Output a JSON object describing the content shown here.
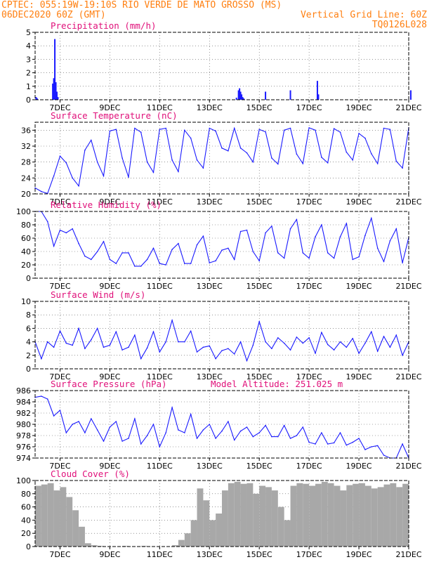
{
  "header": {
    "line1_left": "CPTEC:   055:19W-19:10S  RIO VERDE DE MATO GROSSO (MS)",
    "line2_left": "06DEC2020 60Z (GMT)",
    "line2_right": "Vertical Grid Line: 60Z",
    "line3_right": "TQ0126L028"
  },
  "colors": {
    "header": "#ff7f10",
    "titles": "#e0107a",
    "series": "#1a1aff",
    "cloud": "#a8a8a8"
  },
  "x_axis": {
    "ticks": [
      "7DEC",
      "9DEC",
      "11DEC",
      "13DEC",
      "15DEC",
      "17DEC",
      "19DEC",
      "21DEC"
    ],
    "range_hours": [
      0,
      360
    ],
    "note": "x values are hours from 06DEC2020 00Z"
  },
  "chart_data": [
    {
      "type": "bar",
      "title": "Precipitation (mm/h)",
      "ylim": [
        0,
        5
      ],
      "yticks": [
        "0",
        "1",
        "2",
        "3",
        "4",
        "5"
      ],
      "x": [
        1,
        2,
        17,
        18,
        19,
        20,
        21,
        22,
        194,
        196,
        197,
        198,
        199,
        200,
        201,
        222,
        246,
        272,
        273,
        362
      ],
      "values": [
        0.2,
        0.1,
        1.2,
        1.6,
        4.5,
        1.3,
        0.6,
        0.2,
        0.15,
        0.7,
        0.85,
        0.6,
        0.4,
        0.2,
        0.1,
        0.6,
        0.7,
        1.4,
        0.4,
        0.7
      ]
    },
    {
      "type": "line",
      "title": "Surface Temperature (nC)",
      "ylim": [
        20,
        38
      ],
      "yticks": [
        "20",
        "24",
        "28",
        "32",
        "36"
      ],
      "x": [
        0,
        6,
        12,
        18,
        24,
        30,
        36,
        42,
        48,
        54,
        60,
        66,
        72,
        78,
        84,
        90,
        96,
        102,
        108,
        114,
        120,
        126,
        132,
        138,
        144,
        150,
        156,
        162,
        168,
        174,
        180,
        186,
        192,
        198,
        204,
        210,
        216,
        222,
        228,
        234,
        240,
        246,
        252,
        258,
        264,
        270,
        276,
        282,
        288,
        294,
        300,
        306,
        312,
        318,
        324,
        330,
        336,
        342,
        348,
        354,
        360
      ],
      "values": [
        21.5,
        20.6,
        20.1,
        24.5,
        29.5,
        27.8,
        24,
        22,
        31,
        33.5,
        28,
        24.5,
        35.8,
        36.2,
        29,
        24.2,
        36.5,
        35.5,
        28,
        25.4,
        36.2,
        36.5,
        28.5,
        25.6,
        36,
        34,
        28.5,
        26.5,
        36.5,
        35.8,
        31.5,
        30.8,
        36.5,
        31.5,
        30.3,
        28,
        36.2,
        35.6,
        29,
        27.5,
        36,
        36.5,
        30,
        27.6,
        36.6,
        36,
        29.2,
        27.8,
        36.4,
        35.5,
        30.5,
        28.5,
        35.2,
        34,
        30.1,
        27.6,
        36.5,
        36.2,
        28.2,
        26.5,
        36.6
      ]
    },
    {
      "type": "line",
      "title": "Relative Humidity (%)",
      "ylim": [
        0,
        100
      ],
      "yticks": [
        "0",
        "20",
        "40",
        "60",
        "80",
        "100"
      ],
      "x": [
        0,
        6,
        12,
        18,
        24,
        30,
        36,
        42,
        48,
        54,
        60,
        66,
        72,
        78,
        84,
        90,
        96,
        102,
        108,
        114,
        120,
        126,
        132,
        138,
        144,
        150,
        156,
        162,
        168,
        174,
        180,
        186,
        192,
        198,
        204,
        210,
        216,
        222,
        228,
        234,
        240,
        246,
        252,
        258,
        264,
        270,
        276,
        282,
        288,
        294,
        300,
        306,
        312,
        318,
        324,
        330,
        336,
        342,
        348,
        354,
        360
      ],
      "values": [
        100,
        100,
        85,
        48,
        72,
        68,
        74,
        52,
        33,
        28,
        40,
        55,
        28,
        22,
        38,
        38,
        18,
        18,
        28,
        45,
        22,
        20,
        43,
        52,
        22,
        22,
        50,
        63,
        23,
        26,
        42,
        45,
        28,
        70,
        72,
        40,
        26,
        68,
        78,
        38,
        30,
        74,
        88,
        38,
        30,
        62,
        80,
        38,
        30,
        62,
        82,
        28,
        32,
        64,
        90,
        45,
        25,
        56,
        74,
        23,
        61
      ]
    },
    {
      "type": "line",
      "title": "Surface Wind (m/s)",
      "ylim": [
        0,
        10
      ],
      "yticks": [
        "0",
        "2",
        "4",
        "6",
        "8",
        "10"
      ],
      "x": [
        0,
        6,
        12,
        18,
        24,
        30,
        36,
        42,
        48,
        54,
        60,
        66,
        72,
        78,
        84,
        90,
        96,
        102,
        108,
        114,
        120,
        126,
        132,
        138,
        144,
        150,
        156,
        162,
        168,
        174,
        180,
        186,
        192,
        198,
        204,
        210,
        216,
        222,
        228,
        234,
        240,
        246,
        252,
        258,
        264,
        270,
        276,
        282,
        288,
        294,
        300,
        306,
        312,
        318,
        324,
        330,
        336,
        342,
        348,
        354,
        360
      ],
      "values": [
        4,
        1.5,
        4,
        3.2,
        5.6,
        3.8,
        3.5,
        6,
        3,
        4.3,
        6,
        3.2,
        3.5,
        5.5,
        2.8,
        3.2,
        5,
        1.5,
        3.1,
        5.5,
        2.5,
        4,
        7.2,
        4,
        4,
        5.6,
        2.5,
        3.2,
        3.4,
        1.5,
        2.7,
        3,
        2.2,
        4,
        1.2,
        3.5,
        7,
        4,
        3,
        4.6,
        3.8,
        2.8,
        4.7,
        3.8,
        4.6,
        2.3,
        5.4,
        3.6,
        2.8,
        4,
        3.2,
        4.5,
        2.3,
        3.8,
        5.5,
        2.6,
        4.8,
        3.2,
        5,
        2,
        4
      ]
    },
    {
      "type": "line",
      "title": "Surface Pressure (hPa)",
      "annotation": "Model Altitude: 251.025 m",
      "ylim": [
        974,
        986
      ],
      "yticks": [
        "974",
        "976",
        "978",
        "980",
        "982",
        "984",
        "986"
      ],
      "x": [
        0,
        6,
        12,
        18,
        24,
        30,
        36,
        42,
        48,
        54,
        60,
        66,
        72,
        78,
        84,
        90,
        96,
        102,
        108,
        114,
        120,
        126,
        132,
        138,
        144,
        150,
        156,
        162,
        168,
        174,
        180,
        186,
        192,
        198,
        204,
        210,
        216,
        222,
        228,
        234,
        240,
        246,
        252,
        258,
        264,
        270,
        276,
        282,
        288,
        294,
        300,
        306,
        312,
        318,
        324,
        330,
        336,
        342,
        348,
        354,
        360
      ],
      "values": [
        984.8,
        985,
        984.5,
        981.5,
        982.5,
        978.5,
        980,
        980.5,
        978.5,
        981,
        979,
        977,
        979.5,
        980.5,
        977,
        977.5,
        981,
        976.5,
        978,
        980,
        976,
        978.5,
        983,
        979,
        978.5,
        981.8,
        977.5,
        979,
        980,
        977.5,
        978.8,
        980.5,
        977.2,
        978.8,
        979.5,
        977.8,
        978.5,
        979.8,
        977.8,
        977.8,
        979.8,
        977.5,
        978,
        979.5,
        976.8,
        976.5,
        978.5,
        976.5,
        976.7,
        978.5,
        976.3,
        976.8,
        977.5,
        975.5,
        976,
        976.2,
        974.5,
        973.8,
        974,
        976.5,
        973.5
      ]
    },
    {
      "type": "area",
      "title": "Cloud Cover (%)",
      "ylim": [
        0,
        100
      ],
      "yticks": [
        "0",
        "20",
        "40",
        "60",
        "80",
        "100"
      ],
      "x": [
        0,
        6,
        12,
        18,
        24,
        30,
        36,
        42,
        48,
        54,
        60,
        66,
        72,
        78,
        84,
        90,
        96,
        102,
        108,
        114,
        120,
        126,
        132,
        138,
        144,
        150,
        156,
        162,
        168,
        174,
        180,
        186,
        192,
        198,
        204,
        210,
        216,
        222,
        228,
        234,
        240,
        246,
        252,
        258,
        264,
        270,
        276,
        282,
        288,
        294,
        300,
        306,
        312,
        318,
        324,
        330,
        336,
        342,
        348,
        354,
        360
      ],
      "values": [
        92,
        94,
        96,
        85,
        90,
        75,
        55,
        30,
        5,
        2,
        1,
        0,
        0,
        0,
        1,
        0,
        0,
        1,
        0,
        0,
        0,
        0,
        2,
        10,
        20,
        40,
        88,
        70,
        40,
        50,
        85,
        96,
        98,
        95,
        96,
        80,
        92,
        90,
        85,
        60,
        40,
        92,
        96,
        95,
        92,
        95,
        98,
        96,
        92,
        85,
        93,
        95,
        96,
        92,
        88,
        90,
        94,
        96,
        90,
        95,
        97
      ]
    }
  ]
}
